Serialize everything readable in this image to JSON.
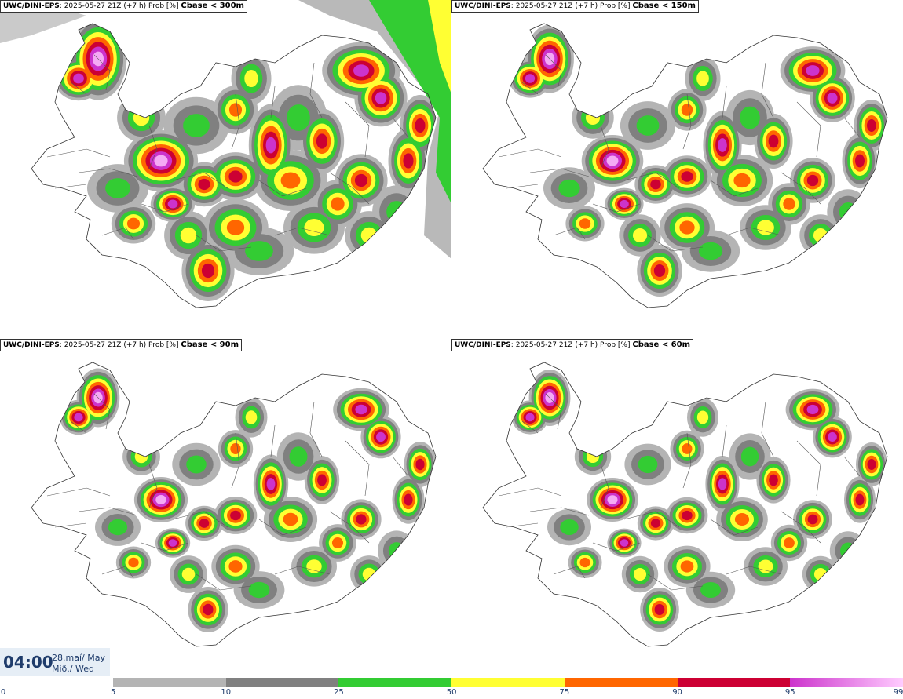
{
  "panels": [
    {
      "model": "UWC/DINI-EPS",
      "meta": ": 2025-05-27 21Z (+7 h) Prob [%]",
      "variable": "Cbase < 300m",
      "coverage": 1.35
    },
    {
      "model": "UWC/DINI-EPS",
      "meta": ": 2025-05-27 21Z (+7 h) Prob [%]",
      "variable": "Cbase < 150m",
      "coverage": 1.05
    },
    {
      "model": "UWC/DINI-EPS",
      "meta": ": 2025-05-27 21Z (+7 h) Prob [%]",
      "variable": "Cbase < 90m",
      "coverage": 0.85
    },
    {
      "model": "UWC/DINI-EPS",
      "meta": ": 2025-05-27 21Z (+7 h) Prob [%]",
      "variable": "Cbase < 60m",
      "coverage": 0.8
    }
  ],
  "time": {
    "clock": "04:00",
    "date_line1": "28.maí/ May",
    "date_line2": "Mið./ Wed"
  },
  "colorbar": {
    "labels": [
      "0",
      "5",
      "10",
      "25",
      "50",
      "75",
      "90",
      "95",
      "99"
    ],
    "segments": [
      {
        "from": 5,
        "to": 10,
        "color": "#b4b4b4"
      },
      {
        "from": 10,
        "to": 25,
        "color": "#808080"
      },
      {
        "from": 25,
        "to": 50,
        "color": "#33cc33"
      },
      {
        "from": 50,
        "to": 75,
        "color": "#ffff33"
      },
      {
        "from": 75,
        "to": 90,
        "color": "#ff6600"
      },
      {
        "from": 90,
        "to": 95,
        "color": "#cc0033"
      },
      {
        "from": 95,
        "to": 99,
        "color": "#cc33cc",
        "color_end": "#ffccff"
      }
    ]
  },
  "colors": {
    "gray_light": "#b4b4b4",
    "gray_dark": "#808080",
    "green": "#33cc33",
    "yellow": "#ffff33",
    "orange": "#ff6600",
    "red": "#cc0033",
    "magenta": "#cc33cc",
    "pink": "#f5aaf5",
    "label_blue": "#1f3c6b"
  }
}
